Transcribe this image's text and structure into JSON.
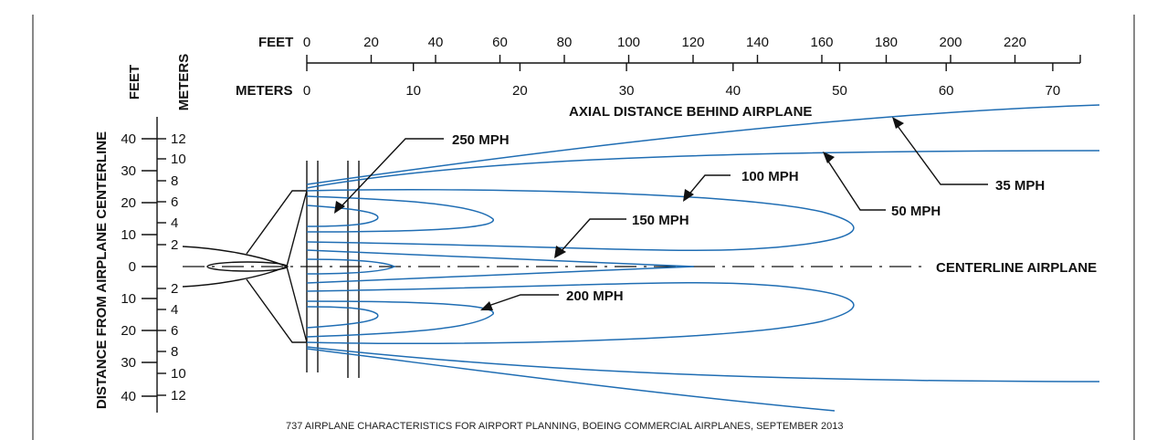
{
  "top_axis": {
    "feet_label": "FEET",
    "meters_label": "METERS",
    "title": "AXIAL DISTANCE BEHIND AIRPLANE",
    "feet_ticks": [
      "0",
      "20",
      "40",
      "60",
      "80",
      "100",
      "120",
      "140",
      "160",
      "180",
      "200",
      "220"
    ],
    "meters_ticks": [
      "0",
      "10",
      "20",
      "30",
      "40",
      "50",
      "60",
      "70"
    ]
  },
  "left_axis": {
    "title": "DISTANCE FROM AIRPLANE CENTERLINE",
    "feet_label": "FEET",
    "meters_label": "METERS",
    "feet_ticks": [
      "40",
      "30",
      "20",
      "10",
      "0",
      "10",
      "20",
      "30",
      "40"
    ],
    "meters_ticks": [
      "12",
      "10",
      "8",
      "6",
      "4",
      "2",
      "2",
      "4",
      "6",
      "8",
      "10",
      "12"
    ]
  },
  "contours": {
    "mph_250": "250 MPH",
    "mph_200": "200 MPH",
    "mph_150": "150 MPH",
    "mph_100": "100 MPH",
    "mph_50": "50 MPH",
    "mph_35": "35 MPH"
  },
  "centerline_label": "CENTERLINE AIRPLANE",
  "source": "737 AIRPLANE CHARACTERISTICS FOR AIRPORT PLANNING, BOEING COMMERCIAL AIRPLANES, SEPTEMBER 2013"
}
